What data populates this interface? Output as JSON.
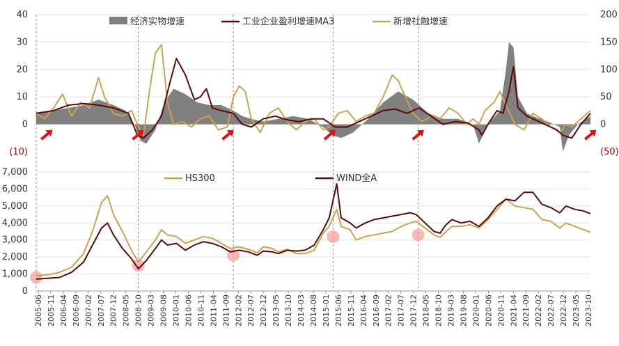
{
  "chart_data": [
    {
      "type": "line",
      "title": "",
      "legend": [
        "经济实物增速",
        "工业企业盈利增速MA3",
        "新增社融增速"
      ],
      "legend_placement": "top",
      "left_axis": {
        "ylim": [
          -10,
          40
        ],
        "ticks": [
          "(10)",
          "0",
          "10",
          "20",
          "30",
          "40"
        ]
      },
      "right_axis": {
        "ylim": [
          -50,
          200
        ],
        "ticks": [
          "(50)",
          "0",
          "50",
          "100",
          "150",
          "200"
        ]
      },
      "x_range": [
        2005.42,
        2023.92
      ],
      "colors": {
        "area": "#808080",
        "profit": "#5a0a0a",
        "social_financing": "#c8a450",
        "marker": "#dd1111",
        "vline": "#d96a6a"
      },
      "vertical_lines": [
        2005.42,
        2008.83,
        2012.0,
        2015.33,
        2018.17
      ],
      "arrow_markers": [
        2005.75,
        2008.8,
        2011.8,
        2015.2,
        2018.15,
        2023.9
      ],
      "series": [
        {
          "name": "经济实物增速",
          "axis": "left",
          "kind": "area",
          "x": [
            2005.42,
            2006.0,
            2006.5,
            2007.0,
            2007.5,
            2008.0,
            2008.4,
            2008.7,
            2008.9,
            2009.1,
            2009.4,
            2009.7,
            2010.0,
            2010.4,
            2010.8,
            2011.2,
            2011.6,
            2012.0,
            2012.3,
            2012.6,
            2013.0,
            2013.5,
            2014.0,
            2014.5,
            2015.0,
            2015.3,
            2015.6,
            2016.0,
            2016.5,
            2017.0,
            2017.5,
            2018.0,
            2018.5,
            2019.0,
            2019.5,
            2020.0,
            2020.2,
            2020.5,
            2020.9,
            2021.1,
            2021.2,
            2021.35,
            2021.5,
            2021.8,
            2022.0,
            2022.5,
            2022.9,
            2023.0,
            2023.2,
            2023.5,
            2023.92
          ],
          "values": [
            4,
            5,
            6,
            7,
            9,
            7,
            5,
            0,
            -6,
            -7,
            -2,
            8,
            13,
            11,
            8,
            7,
            7,
            5,
            3,
            2,
            1,
            2,
            3,
            2,
            -1,
            -4,
            -5,
            -3,
            2,
            8,
            12,
            9,
            4,
            2,
            2,
            0,
            -7,
            0,
            5,
            20,
            30,
            28,
            10,
            4,
            3,
            1,
            -1,
            -10,
            -4,
            0,
            3
          ]
        },
        {
          "name": "工业企业盈利增速MA3",
          "axis": "right",
          "x": [
            2005.42,
            2006.0,
            2006.5,
            2007.0,
            2007.5,
            2008.0,
            2008.5,
            2008.8,
            2009.0,
            2009.3,
            2009.6,
            2009.9,
            2010.1,
            2010.4,
            2010.7,
            2010.9,
            2011.1,
            2011.3,
            2011.6,
            2012.0,
            2012.3,
            2012.6,
            2013.0,
            2013.4,
            2013.8,
            2014.2,
            2014.6,
            2015.0,
            2015.4,
            2015.8,
            2016.2,
            2016.6,
            2017.0,
            2017.4,
            2017.8,
            2018.2,
            2018.6,
            2019.0,
            2019.4,
            2019.8,
            2020.2,
            2020.3,
            2020.5,
            2020.8,
            2021.0,
            2021.2,
            2021.35,
            2021.5,
            2021.8,
            2022.0,
            2022.4,
            2022.8,
            2023.0,
            2023.3,
            2023.6,
            2023.92
          ],
          "values": [
            20,
            25,
            35,
            38,
            35,
            30,
            20,
            -20,
            -25,
            -10,
            15,
            80,
            120,
            90,
            45,
            50,
            65,
            30,
            25,
            20,
            0,
            -5,
            10,
            15,
            8,
            5,
            10,
            10,
            -5,
            -5,
            5,
            15,
            25,
            28,
            20,
            30,
            15,
            0,
            5,
            3,
            -10,
            -20,
            0,
            25,
            20,
            60,
            105,
            30,
            15,
            10,
            0,
            -10,
            -20,
            -25,
            0,
            20
          ]
        },
        {
          "name": "新增社融增速",
          "axis": "right",
          "x": [
            2005.42,
            2005.7,
            2006.0,
            2006.3,
            2006.6,
            2006.9,
            2007.2,
            2007.5,
            2007.7,
            2008.0,
            2008.3,
            2008.6,
            2008.8,
            2009.0,
            2009.2,
            2009.4,
            2009.6,
            2009.8,
            2010.0,
            2010.3,
            2010.6,
            2010.9,
            2011.2,
            2011.5,
            2011.8,
            2012.0,
            2012.2,
            2012.4,
            2012.6,
            2012.9,
            2013.2,
            2013.5,
            2013.8,
            2014.1,
            2014.4,
            2014.7,
            2015.0,
            2015.2,
            2015.5,
            2015.8,
            2016.1,
            2016.4,
            2016.7,
            2017.0,
            2017.3,
            2017.5,
            2017.7,
            2018.0,
            2018.3,
            2018.6,
            2018.9,
            2019.2,
            2019.5,
            2019.8,
            2020.0,
            2020.2,
            2020.4,
            2020.7,
            2020.9,
            2021.1,
            2021.4,
            2021.7,
            2022.0,
            2022.3,
            2022.6,
            2022.9,
            2023.1,
            2023.3,
            2023.6,
            2023.92
          ],
          "values": [
            20,
            10,
            30,
            55,
            15,
            40,
            30,
            85,
            50,
            20,
            15,
            25,
            0,
            -20,
            60,
            130,
            145,
            40,
            0,
            5,
            -5,
            10,
            15,
            -10,
            -5,
            50,
            70,
            60,
            10,
            -15,
            20,
            30,
            5,
            -10,
            5,
            10,
            -10,
            -5,
            20,
            25,
            5,
            15,
            20,
            50,
            90,
            80,
            55,
            20,
            5,
            15,
            10,
            30,
            20,
            0,
            10,
            0,
            25,
            40,
            60,
            35,
            0,
            -10,
            20,
            10,
            -5,
            -15,
            0,
            -5,
            10,
            25
          ]
        }
      ]
    },
    {
      "type": "line",
      "title": "",
      "legend": [
        "HS300",
        "WIND全A"
      ],
      "legend_placement": "top",
      "ylim": [
        0,
        7000
      ],
      "y_ticks": [
        "0",
        "1,000",
        "2,000",
        "3,000",
        "4,000",
        "5,000",
        "6,000",
        "7,000"
      ],
      "x_tick_labels": [
        "2005-06",
        "2005-11",
        "2006-04",
        "2006-09",
        "2007-02",
        "2007-07",
        "2007-12",
        "2008-05",
        "2008-10",
        "2009-03",
        "2009-08",
        "2010-01",
        "2010-06",
        "2010-11",
        "2011-04",
        "2011-09",
        "2012-02",
        "2012-07",
        "2012-12",
        "2013-05",
        "2013-10",
        "2014-03",
        "2014-08",
        "2015-01",
        "2015-06",
        "2015-11",
        "2016-04",
        "2016-09",
        "2017-02",
        "2017-07",
        "2017-12",
        "2018-05",
        "2018-10",
        "2019-03",
        "2019-08",
        "2020-01",
        "2020-06",
        "2020-11",
        "2021-04",
        "2021-09",
        "2022-02",
        "2022-07",
        "2022-12",
        "2023-05",
        "2023-10"
      ],
      "colors": {
        "hs300": "#c8a450",
        "wind": "#5a0a0a",
        "circle": "#f4a0a0"
      },
      "circle_markers": [
        {
          "x": 2005.42,
          "y": 800
        },
        {
          "x": 2008.83,
          "y": 1500
        },
        {
          "x": 2012.0,
          "y": 2100
        },
        {
          "x": 2015.33,
          "y": 3200
        },
        {
          "x": 2018.17,
          "y": 3300
        }
      ],
      "series": [
        {
          "name": "HS300",
          "x": [
            2005.42,
            2005.8,
            2006.2,
            2006.6,
            2007.0,
            2007.3,
            2007.6,
            2007.8,
            2008.0,
            2008.3,
            2008.6,
            2008.83,
            2009.1,
            2009.4,
            2009.6,
            2009.8,
            2010.1,
            2010.4,
            2010.7,
            2011.0,
            2011.3,
            2011.6,
            2011.9,
            2012.2,
            2012.5,
            2012.8,
            2013.0,
            2013.3,
            2013.5,
            2013.8,
            2014.1,
            2014.4,
            2014.7,
            2015.0,
            2015.2,
            2015.45,
            2015.6,
            2015.9,
            2016.1,
            2016.4,
            2016.7,
            2017.0,
            2017.3,
            2017.6,
            2017.9,
            2018.1,
            2018.4,
            2018.7,
            2018.9,
            2019.1,
            2019.3,
            2019.6,
            2019.9,
            2020.2,
            2020.5,
            2020.8,
            2021.1,
            2021.4,
            2021.7,
            2022.0,
            2022.3,
            2022.6,
            2022.9,
            2023.1,
            2023.4,
            2023.7,
            2023.92
          ],
          "values": [
            900,
            950,
            1100,
            1400,
            2200,
            3500,
            5200,
            5600,
            4500,
            3500,
            2400,
            1700,
            2300,
            3000,
            3600,
            3300,
            3200,
            2800,
            3000,
            3200,
            3100,
            2800,
            2500,
            2600,
            2450,
            2250,
            2600,
            2500,
            2300,
            2450,
            2200,
            2200,
            2400,
            3400,
            3800,
            4800,
            3800,
            3600,
            3000,
            3200,
            3300,
            3400,
            3500,
            3800,
            4000,
            4100,
            3700,
            3300,
            3150,
            3500,
            3800,
            3800,
            3900,
            3700,
            4200,
            4800,
            5400,
            5000,
            4900,
            4800,
            4200,
            4100,
            3700,
            4000,
            3800,
            3600,
            3450
          ]
        },
        {
          "name": "WIND全A",
          "x": [
            2005.42,
            2005.8,
            2006.2,
            2006.6,
            2007.0,
            2007.3,
            2007.6,
            2007.8,
            2008.0,
            2008.3,
            2008.6,
            2008.83,
            2009.1,
            2009.4,
            2009.6,
            2009.8,
            2010.1,
            2010.4,
            2010.7,
            2011.0,
            2011.3,
            2011.6,
            2011.9,
            2012.2,
            2012.5,
            2012.8,
            2013.0,
            2013.3,
            2013.5,
            2013.8,
            2014.1,
            2014.4,
            2014.7,
            2015.0,
            2015.2,
            2015.45,
            2015.6,
            2015.9,
            2016.1,
            2016.4,
            2016.7,
            2017.0,
            2017.3,
            2017.6,
            2017.9,
            2018.1,
            2018.4,
            2018.7,
            2018.9,
            2019.1,
            2019.3,
            2019.6,
            2019.9,
            2020.2,
            2020.5,
            2020.8,
            2021.1,
            2021.4,
            2021.7,
            2022.0,
            2022.3,
            2022.6,
            2022.9,
            2023.1,
            2023.4,
            2023.7,
            2023.92
          ],
          "values": [
            700,
            750,
            800,
            1100,
            1700,
            2700,
            3700,
            4000,
            3300,
            2500,
            1900,
            1300,
            1800,
            2500,
            3000,
            2700,
            2800,
            2400,
            2700,
            2900,
            2800,
            2600,
            2300,
            2400,
            2300,
            2100,
            2350,
            2300,
            2200,
            2400,
            2350,
            2400,
            2700,
            3600,
            4300,
            6300,
            4300,
            4000,
            3700,
            4000,
            4200,
            4300,
            4400,
            4500,
            4600,
            4500,
            4000,
            3500,
            3400,
            3900,
            4200,
            4000,
            4100,
            3800,
            4300,
            5000,
            5400,
            5300,
            5800,
            5800,
            5100,
            4900,
            4600,
            5000,
            4800,
            4700,
            4550
          ]
        }
      ]
    }
  ]
}
